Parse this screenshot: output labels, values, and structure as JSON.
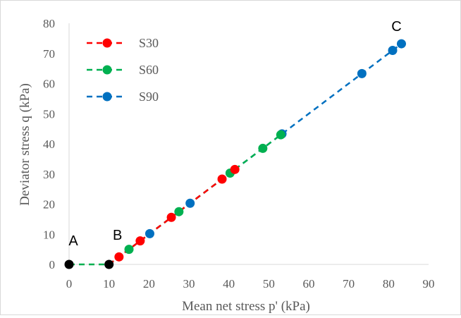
{
  "chart_data": {
    "type": "line",
    "xlabel": "Mean net stress  p' (kPa)",
    "ylabel": "Deviator stress q  (kPa)",
    "xlim": [
      0,
      90
    ],
    "ylim": [
      0,
      80
    ],
    "x_ticks": [
      "0",
      "10",
      "20",
      "30",
      "40",
      "50",
      "60",
      "70",
      "80",
      "90"
    ],
    "y_ticks": [
      "0",
      "10",
      "20",
      "30",
      "40",
      "50",
      "60",
      "70",
      "80"
    ],
    "grid": false,
    "legend_position": "top-left",
    "series": [
      {
        "name": "S30",
        "color": "#ff0000",
        "x": [
          10,
          12.5,
          17.8,
          25.6,
          38.3,
          41.5
        ],
        "y": [
          0,
          2.5,
          7.8,
          15.6,
          28.3,
          31.5
        ]
      },
      {
        "name": "S60",
        "color": "#00b050",
        "x": [
          10,
          15,
          27.5,
          40.3,
          48.5,
          53
        ],
        "y": [
          0,
          5,
          17.5,
          30.3,
          38.5,
          43
        ]
      },
      {
        "name": "S90",
        "color": "#0070c0",
        "x": [
          10,
          20.2,
          30.3,
          53.3,
          73.3,
          81,
          83.2
        ],
        "y": [
          0,
          10.2,
          20.3,
          43.3,
          63.3,
          71,
          73.2
        ]
      }
    ],
    "initial_path": {
      "color": "#00b050",
      "x": [
        0,
        10
      ],
      "y": [
        0,
        0
      ]
    },
    "reference_points": [
      {
        "label": "A",
        "x": 0,
        "y": 0,
        "color": "#000000"
      },
      {
        "label": "B",
        "x": 10,
        "y": 0,
        "color": "#000000"
      },
      {
        "label": "C",
        "x": 83.2,
        "y": 73.2,
        "color": null
      }
    ]
  }
}
